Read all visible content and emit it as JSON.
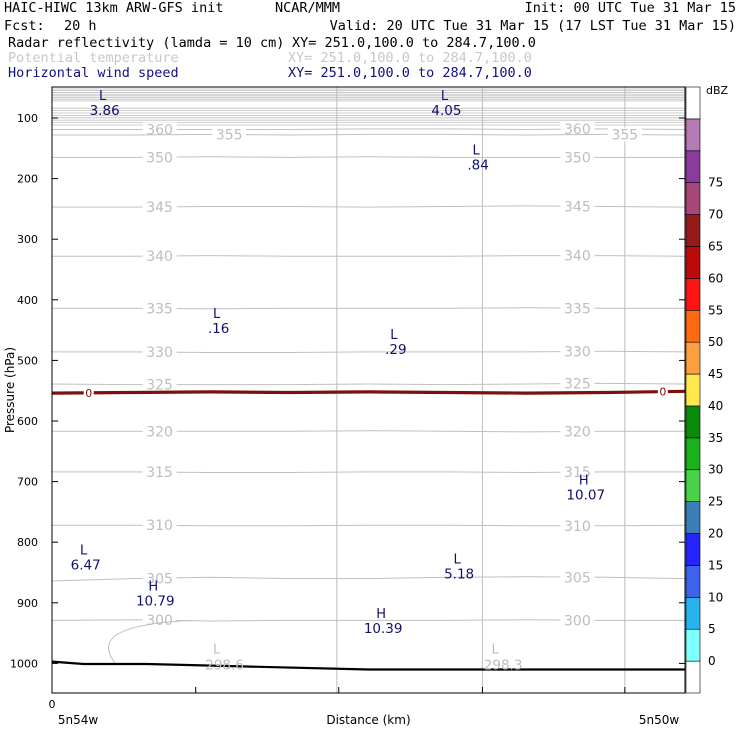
{
  "header": {
    "model": "HAIC-HIWC 13km ARW-GFS init",
    "org": "NCAR/MMM",
    "init": "Init: 00 UTC Tue 31 Mar 15",
    "fcst_label": "Fcst:",
    "fcst_value": "20 h",
    "valid": "Valid: 20 UTC Tue 31 Mar 15 (17 LST Tue 31 Mar 15)",
    "fields": [
      {
        "name": "Radar reflectivity (lamda = 10 cm)",
        "xy": "XY= 251.0,100.0 to 284.7,100.0",
        "color": "#000000"
      },
      {
        "name": "Potential temperature",
        "xy": "XY= 251.0,100.0 to 284.7,100.0",
        "color": "#c8c8c8"
      },
      {
        "name": "Horizontal wind speed",
        "xy": "XY= 251.0,100.0 to 284.7,100.0",
        "color": "#101080"
      }
    ]
  },
  "chart_data": {
    "type": "line",
    "title": "Radar reflectivity (lamda = 10 cm)",
    "xlabel": "Distance (km)",
    "ylabel": "Pressure (hPa)",
    "xlim": [
      0,
      1
    ],
    "ylim": [
      1050,
      55
    ],
    "x_tick_label": "0",
    "x_start_label": "5n54w",
    "x_end_label": "5n50w",
    "y_ticks": [
      100,
      200,
      300,
      400,
      500,
      600,
      700,
      800,
      900,
      1000
    ],
    "colorbar": {
      "unit": "dBZ",
      "levels": [
        0,
        5,
        10,
        15,
        20,
        25,
        30,
        35,
        40,
        45,
        50,
        55,
        60,
        65,
        70,
        75
      ],
      "colors": [
        "#ffffff",
        "#7fffff",
        "#27b4ee",
        "#3c64ea",
        "#2424ff",
        "#3a7fb8",
        "#47d247",
        "#1ab21a",
        "#0a8c0a",
        "#ffe84a",
        "#ffa040",
        "#ff6a10",
        "#ff1414",
        "#be0a0a",
        "#961a1a",
        "#a84878",
        "#8c3a9c",
        "#b67ab6",
        "#ffffff"
      ]
    },
    "theta_contours": [
      {
        "value": 360,
        "p": [
          119,
          119,
          119,
          119,
          118,
          118,
          119,
          118,
          119
        ]
      },
      {
        "value": 355,
        "p": [
          128,
          128,
          127,
          128,
          127,
          127,
          128,
          127,
          128
        ]
      },
      {
        "value": 350,
        "p": [
          165,
          165,
          164,
          165,
          164,
          165,
          165,
          165,
          165
        ]
      },
      {
        "value": 345,
        "p": [
          247,
          247,
          246,
          246,
          247,
          246,
          245,
          246,
          247
        ]
      },
      {
        "value": 340,
        "p": [
          328,
          328,
          327,
          328,
          328,
          328,
          327,
          327,
          328
        ]
      },
      {
        "value": 335,
        "p": [
          414,
          414,
          415,
          414,
          414,
          414,
          413,
          414,
          414
        ]
      },
      {
        "value": 330,
        "p": [
          486,
          486,
          487,
          487,
          486,
          486,
          486,
          485,
          486
        ]
      },
      {
        "value": 325,
        "p": [
          539,
          540,
          540,
          540,
          539,
          540,
          539,
          538,
          539
        ]
      },
      {
        "value": 320,
        "p": [
          617,
          617,
          617,
          617,
          616,
          617,
          618,
          617,
          617
        ]
      },
      {
        "value": 315,
        "p": [
          684,
          684,
          685,
          685,
          684,
          684,
          685,
          684,
          684
        ]
      },
      {
        "value": 310,
        "p": [
          772,
          772,
          773,
          773,
          772,
          772,
          773,
          773,
          772
        ]
      },
      {
        "value": 305,
        "p": [
          864,
          860,
          858,
          860,
          860,
          858,
          857,
          858,
          860
        ]
      },
      {
        "value": 300,
        "p": [
          929,
          928,
          930,
          929,
          929,
          929,
          928,
          929,
          929
        ]
      }
    ],
    "freezing_line": {
      "label": "0",
      "p": [
        554,
        553,
        552,
        553,
        552,
        553,
        554,
        553,
        551
      ]
    },
    "surface_pressure": {
      "x": [
        0,
        0.05,
        0.15,
        0.3,
        0.5,
        0.7,
        0.9,
        1
      ],
      "p": [
        997,
        1001,
        1001,
        1005,
        1010,
        1010,
        1010,
        1010
      ]
    },
    "theta_lows": [
      {
        "x": 0.26,
        "p": 1000,
        "value": "298.6"
      },
      {
        "x": 0.7,
        "p": 1000,
        "value": "298.3"
      }
    ],
    "wind_extrema": [
      {
        "type": "L",
        "x": 0.08,
        "p": 70,
        "value": "3.86"
      },
      {
        "type": "L",
        "x": 0.62,
        "p": 70,
        "value": "4.05"
      },
      {
        "type": "L",
        "x": 0.67,
        "p": 160,
        "value": ".84"
      },
      {
        "type": "L",
        "x": 0.26,
        "p": 430,
        "value": ".16"
      },
      {
        "type": "L",
        "x": 0.54,
        "p": 465,
        "value": ".29"
      },
      {
        "type": "H",
        "x": 0.84,
        "p": 705,
        "value": "10.07"
      },
      {
        "type": "L",
        "x": 0.05,
        "p": 820,
        "value": "6.47"
      },
      {
        "type": "L",
        "x": 0.64,
        "p": 835,
        "value": "5.18"
      },
      {
        "type": "H",
        "x": 0.16,
        "p": 880,
        "value": "10.79"
      },
      {
        "type": "H",
        "x": 0.52,
        "p": 925,
        "value": "10.39"
      }
    ]
  }
}
